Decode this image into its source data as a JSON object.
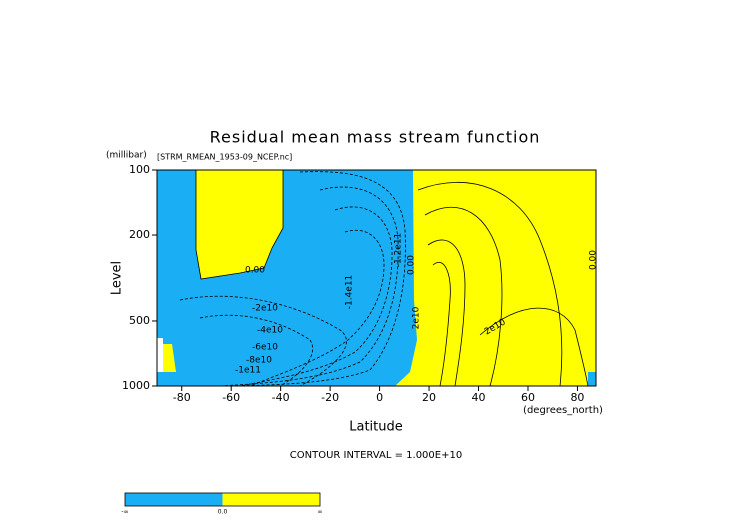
{
  "chart_data": {
    "type": "contour",
    "title": "Residual mean mass stream function",
    "dataset": "[STRM_RMEAN_1953-09_NCEP.nc]",
    "y_units": "(millibar)",
    "x_units": "(degrees_north)",
    "xlabel": "Latitude",
    "ylabel": "Level",
    "xlim": [
      -90,
      87.5
    ],
    "xticks": [
      -80,
      -60,
      -40,
      -20,
      0,
      20,
      40,
      60,
      80
    ],
    "ylim": [
      1000,
      100
    ],
    "yticks": [
      100,
      200,
      500,
      1000
    ],
    "ylog": true,
    "contour_labels": [
      "0.00",
      "-2e10",
      "-4e10",
      "-6e10",
      "-8e10",
      "-1e11",
      "-1.4e11",
      "-1.2e11",
      "0.00",
      "2e10",
      "2e10",
      "0.00"
    ],
    "footer": "CONTOUR INTERVAL = 1.000E+10",
    "colorbar": {
      "colors": [
        "#1aaef5",
        "#ffff00"
      ],
      "labels": [
        "-∞",
        "0.0",
        "∞"
      ]
    }
  }
}
